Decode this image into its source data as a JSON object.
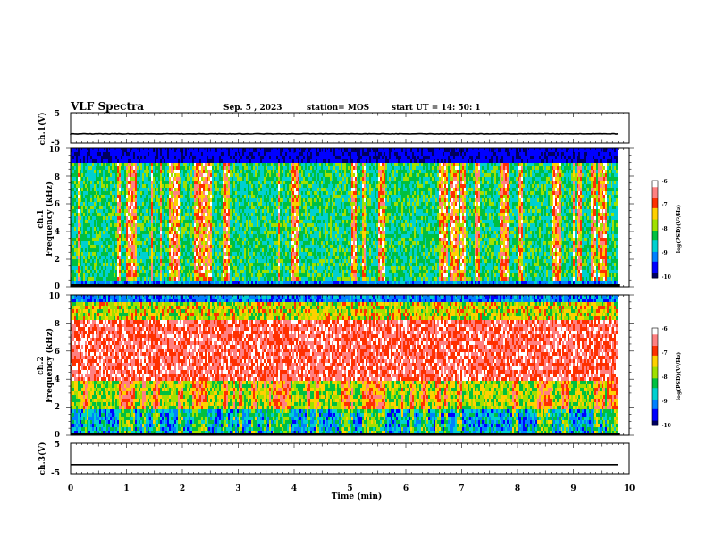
{
  "header": {
    "title": "VLF Spectra",
    "date": "Sep. 5 , 2023",
    "station": "station= MOS",
    "start": "start  UT =   14: 50: 1"
  },
  "chart_data": [
    {
      "type": "line",
      "ylabel": "ch.1(V)",
      "ylim": [
        -5,
        5
      ],
      "yticks": [
        "5",
        "-5"
      ],
      "level": -2,
      "noise": "small"
    },
    {
      "type": "heatmap",
      "ylabel_channel": "ch.1",
      "ylabel": "Frequency (kHz)",
      "ylim": [
        0,
        10
      ],
      "yticks": [
        "0",
        "2",
        "4",
        "6",
        "8",
        "10"
      ],
      "colorbar": {
        "label": "log(PSD)(V²/Hz)",
        "ticks": [
          "-6",
          "-7",
          "-8",
          "-9",
          "-10"
        ],
        "range": [
          -10,
          -6
        ]
      },
      "pattern": "broadband vertical streaks (red/orange/green) over blue-green background, dark top band"
    },
    {
      "type": "heatmap",
      "ylabel_channel": "ch.2",
      "ylabel": "Frequency (kHz)",
      "ylim": [
        0,
        10
      ],
      "yticks": [
        "0",
        "2",
        "4",
        "6",
        "8",
        "10"
      ],
      "colorbar": {
        "label": "log(PSD)(V²/Hz)",
        "ticks": [
          "-6",
          "-7",
          "-8",
          "-9",
          "-10"
        ],
        "range": [
          -10,
          -6
        ]
      },
      "pattern": "strong red band between 4 and 8 kHz, green/yellow edges, blue lower band"
    },
    {
      "type": "line",
      "ylabel": "ch.3(V)",
      "ylim": [
        -5,
        5
      ],
      "yticks": [
        "5",
        "-5"
      ],
      "level": -2,
      "noise": "none"
    }
  ],
  "xaxis": {
    "label": "Time  (min)",
    "ticks": [
      "0",
      "1",
      "2",
      "3",
      "4",
      "5",
      "6",
      "7",
      "8",
      "9",
      "10"
    ],
    "xlim": [
      0,
      10
    ],
    "data_end": 9.82
  },
  "colors": {
    "scale": [
      "#000060",
      "#0000ff",
      "#0080ff",
      "#00d0d0",
      "#00c040",
      "#a0e000",
      "#ffd000",
      "#ff3000",
      "#ff8080",
      "#ffffff"
    ]
  }
}
